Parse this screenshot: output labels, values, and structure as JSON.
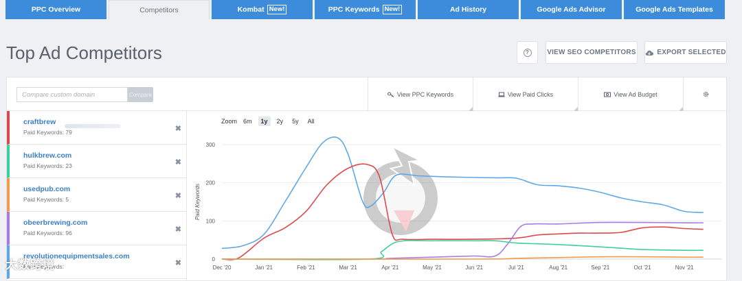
{
  "tabs": [
    {
      "label": "PPC Overview",
      "active": false,
      "new": false
    },
    {
      "label": "Competitors",
      "active": true,
      "new": false
    },
    {
      "label": "Kombat",
      "active": false,
      "new": true
    },
    {
      "label": "PPC Keywords",
      "active": false,
      "new": true
    },
    {
      "label": "Ad History",
      "active": false,
      "new": false
    },
    {
      "label": "Google Ads Advisor",
      "active": false,
      "new": false
    },
    {
      "label": "Google Ads Templates",
      "active": false,
      "new": false
    }
  ],
  "new_badge": "New!",
  "header": {
    "title": "Top Ad Competitors",
    "help_label": "?",
    "seo_button": "VIEW SEO COMPETITORS",
    "export_button": "EXPORT SELECTED"
  },
  "toolbar": {
    "compare_placeholder": "Compare custom domain",
    "compare_button": "Compare",
    "view_ppc_keywords": "View PPC Keywords",
    "view_paid_clicks": "View Paid Clicks",
    "view_ad_budget": "View Ad Budget"
  },
  "competitors": [
    {
      "domain": "craftbrew",
      "keywords_label": "Paid Keywords: 79",
      "color": "#e0474c"
    },
    {
      "domain": "hulkbrew.com",
      "keywords_label": "Paid Keywords: 23",
      "color": "#3fcf9d"
    },
    {
      "domain": "usedpub.com",
      "keywords_label": "Paid Keywords: 5",
      "color": "#f29b4a"
    },
    {
      "domain": "obeerbrewing.com",
      "keywords_label": "Paid Keywords: 96",
      "color": "#a77be3"
    },
    {
      "domain": "revolutionequipmentsales.com",
      "keywords_label": "Paid Keywords:",
      "color": "#5fa8e8"
    }
  ],
  "zoom": {
    "label": "Zoom",
    "options": [
      "6m",
      "1y",
      "2y",
      "5y",
      "All"
    ],
    "active": "1y"
  },
  "watermark": "大数跨境",
  "chart_data": {
    "type": "line",
    "ylabel": "Paid Keywords",
    "ylim": [
      0,
      300
    ],
    "yticks": [
      0,
      100,
      200,
      300
    ],
    "x_ticks": [
      "Dec '20",
      "Jan '21",
      "Feb '21",
      "Mar '21",
      "Apr '21",
      "May '21",
      "Jun '21",
      "Jul '21",
      "Aug '21",
      "Sep '21",
      "Oct '21",
      "Nov '21"
    ],
    "grid": true,
    "series": [
      {
        "name": "revolutionequipmentsales.com",
        "color": "#5fa8e8",
        "points": [
          [
            0,
            28
          ],
          [
            0.5,
            35
          ],
          [
            1,
            65
          ],
          [
            1.5,
            150
          ],
          [
            2,
            240
          ],
          [
            2.4,
            305
          ],
          [
            2.75,
            318
          ],
          [
            3,
            275
          ],
          [
            3.35,
            150
          ],
          [
            3.55,
            140
          ],
          [
            3.85,
            175
          ],
          [
            4.15,
            220
          ],
          [
            4.7,
            218
          ],
          [
            5.5,
            215
          ],
          [
            6.5,
            213
          ],
          [
            7,
            212
          ],
          [
            7.5,
            195
          ],
          [
            8,
            192
          ],
          [
            8.5,
            186
          ],
          [
            9,
            175
          ],
          [
            9.5,
            160
          ],
          [
            10,
            150
          ],
          [
            10.5,
            142
          ],
          [
            11,
            125
          ],
          [
            11.45,
            122
          ]
        ]
      },
      {
        "name": "craftbrew",
        "color": "#e0474c",
        "points": [
          [
            0,
            0
          ],
          [
            0.4,
            3
          ],
          [
            1,
            55
          ],
          [
            1.5,
            82
          ],
          [
            2,
            125
          ],
          [
            2.5,
            195
          ],
          [
            3,
            238
          ],
          [
            3.45,
            248
          ],
          [
            3.75,
            215
          ],
          [
            4.05,
            65
          ],
          [
            4.3,
            52
          ],
          [
            5,
            52
          ],
          [
            6,
            52
          ],
          [
            7,
            55
          ],
          [
            7.5,
            63
          ],
          [
            8,
            66
          ],
          [
            8.5,
            68
          ],
          [
            9,
            68
          ],
          [
            9.5,
            70
          ],
          [
            10,
            82
          ],
          [
            10.5,
            84
          ],
          [
            11,
            80
          ],
          [
            11.45,
            78
          ]
        ]
      },
      {
        "name": "obeerbrewing.com",
        "color": "#a77be3",
        "points": [
          [
            0,
            0
          ],
          [
            3.5,
            0
          ],
          [
            4,
            2
          ],
          [
            5,
            5
          ],
          [
            6,
            8
          ],
          [
            6.5,
            8
          ],
          [
            6.8,
            40
          ],
          [
            7.1,
            85
          ],
          [
            7.4,
            92
          ],
          [
            8,
            92
          ],
          [
            9,
            96
          ],
          [
            10,
            96
          ],
          [
            11,
            95
          ],
          [
            11.45,
            95
          ]
        ]
      },
      {
        "name": "hulkbrew.com",
        "color": "#3fcf9d",
        "points": [
          [
            0,
            0
          ],
          [
            3.5,
            0
          ],
          [
            3.8,
            20
          ],
          [
            4.2,
            46
          ],
          [
            5,
            48
          ],
          [
            6,
            48
          ],
          [
            6.5,
            48
          ],
          [
            7,
            42
          ],
          [
            7.5,
            40
          ],
          [
            8,
            38
          ],
          [
            9,
            32
          ],
          [
            10,
            25
          ],
          [
            11,
            23
          ],
          [
            11.45,
            23
          ]
        ]
      },
      {
        "name": "usedpub.com",
        "color": "#f29b4a",
        "points": [
          [
            0,
            0
          ],
          [
            6,
            0
          ],
          [
            7,
            2
          ],
          [
            8,
            4
          ],
          [
            9,
            6
          ],
          [
            10,
            6
          ],
          [
            11,
            5
          ],
          [
            11.45,
            5
          ]
        ]
      }
    ]
  }
}
